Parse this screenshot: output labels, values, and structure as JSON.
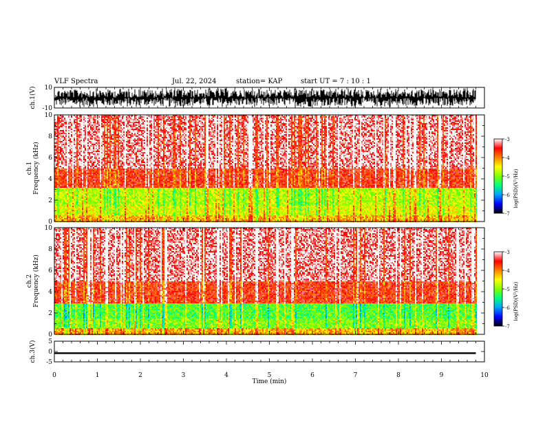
{
  "header": {
    "title": "VLF Spectra",
    "date": "Jul. 22, 2024",
    "station": "station= KAP",
    "start_ut": "start UT =  7 : 10 : 1"
  },
  "colorbar": {
    "label": "log(PSD)(V²/Hz)",
    "ticks": [
      "-3",
      "-4",
      "-5",
      "-6",
      "-7"
    ],
    "colors": [
      "#000000",
      "#0000ff",
      "#00a0ff",
      "#00ff80",
      "#80ff00",
      "#ffff00",
      "#ff8000",
      "#ff0000",
      "#ffffff"
    ]
  },
  "chart_data": [
    {
      "type": "line",
      "title": "",
      "ylabel": "ch.1(V)",
      "ylim": [
        -10,
        10
      ],
      "yticks": [
        "10",
        "-10"
      ],
      "x": [
        0,
        0.5,
        1,
        1.5,
        2,
        2.5,
        3,
        3.5,
        4,
        4.5,
        5,
        5.5,
        6,
        6.5,
        7,
        7.5,
        8,
        8.5,
        9,
        9.5,
        9.8
      ],
      "y_min": [
        -8,
        -9,
        -8,
        -9,
        -8,
        -9,
        -8,
        -9,
        -8,
        -9,
        -8,
        -9,
        -8,
        -9,
        -8,
        -9,
        -8,
        -9,
        -8,
        -9,
        -8
      ],
      "y_max": [
        8,
        9,
        8,
        9,
        8,
        9,
        8,
        9,
        8,
        9,
        8,
        9,
        8,
        9,
        8,
        9,
        8,
        9,
        8,
        9,
        8
      ]
    },
    {
      "type": "heatmap",
      "ylabel": "ch.1\nFrequency (kHz)",
      "ylim": [
        0,
        10
      ],
      "yticks": [
        "0",
        "2",
        "4",
        "6",
        "8",
        "10"
      ],
      "xlim": [
        0,
        9.8
      ],
      "bands_khz": [
        {
          "from": 0,
          "to": 0.7,
          "level": -4.2
        },
        {
          "from": 0.7,
          "to": 1.5,
          "level": -4.6
        },
        {
          "from": 1.5,
          "to": 3.2,
          "level": -4.8
        },
        {
          "from": 3.2,
          "to": 5.0,
          "level": -3.6
        },
        {
          "from": 5.0,
          "to": 10.0,
          "level": -3.2
        }
      ]
    },
    {
      "type": "heatmap",
      "ylabel": "ch.2\nFrequency (kHz)",
      "ylim": [
        0,
        10
      ],
      "yticks": [
        "0",
        "2",
        "4",
        "6",
        "8",
        "10"
      ],
      "xlim": [
        0,
        9.8
      ],
      "bands_khz": [
        {
          "from": 0,
          "to": 0.7,
          "level": -4.2
        },
        {
          "from": 0.7,
          "to": 1.5,
          "level": -5.0
        },
        {
          "from": 1.5,
          "to": 3.0,
          "level": -5.2
        },
        {
          "from": 3.0,
          "to": 5.0,
          "level": -3.6
        },
        {
          "from": 5.0,
          "to": 10.0,
          "level": -3.2
        }
      ]
    },
    {
      "type": "line",
      "ylabel": "ch.3(V)",
      "ylim": [
        -5,
        5
      ],
      "yticks": [
        "5",
        "0",
        "-5"
      ],
      "x": [
        0,
        9.8
      ],
      "y_min": [
        -1.2,
        -1.2
      ],
      "y_max": [
        -0.4,
        -0.4
      ]
    }
  ],
  "xaxis": {
    "label": "Time (min)",
    "xlim": [
      0,
      10
    ],
    "ticks": [
      "0",
      "1",
      "2",
      "3",
      "4",
      "5",
      "6",
      "7",
      "8",
      "9",
      "10"
    ]
  }
}
